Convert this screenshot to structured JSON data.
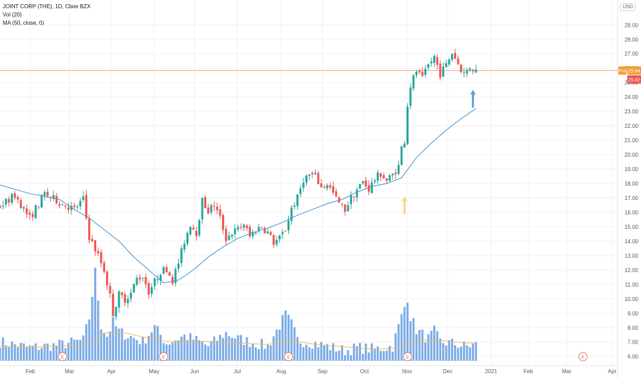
{
  "header": {
    "symbol_line": "JOINT CORP (THE), 1D, Cboe BZX",
    "vol_line": "Vol (20)",
    "ma_line": "MA (50, close, 0)",
    "currency": "USD"
  },
  "chart_data": {
    "type": "candlestick",
    "y_range": [
      5.7,
      29.3
    ],
    "y_ticks": [
      "6.00",
      "7.00",
      "8.00",
      "9.00",
      "10.00",
      "11.00",
      "12.00",
      "13.00",
      "14.00",
      "15.00",
      "16.00",
      "17.00",
      "18.00",
      "19.00",
      "20.00",
      "21.00",
      "22.00",
      "23.00",
      "24.00",
      "25.00",
      "26.00",
      "27.00",
      "28.00",
      "29.00"
    ],
    "x_labels": [
      "Feb",
      "Mar",
      "Apr",
      "May",
      "Jun",
      "Jul",
      "Aug",
      "Sep",
      "Oct",
      "Nov",
      "Dec",
      "2021",
      "Feb",
      "Mar",
      "Apr"
    ],
    "close_path": [
      [
        0,
        16.4
      ],
      [
        5,
        17.2
      ],
      [
        10,
        15.6
      ],
      [
        15,
        17.3
      ],
      [
        20,
        16.7
      ],
      [
        25,
        16.2
      ],
      [
        28,
        16.9
      ],
      [
        30,
        14.3
      ],
      [
        33,
        13.0
      ],
      [
        35,
        12.0
      ],
      [
        37,
        10.2
      ],
      [
        38,
        9.0
      ],
      [
        40,
        10.3
      ],
      [
        42,
        10.0
      ],
      [
        44,
        10.4
      ],
      [
        46,
        11.4
      ],
      [
        48,
        11.6
      ],
      [
        50,
        10.5
      ],
      [
        52,
        11.2
      ],
      [
        54,
        11.9
      ],
      [
        56,
        12.1
      ],
      [
        58,
        11.3
      ],
      [
        60,
        12.5
      ],
      [
        62,
        14.0
      ],
      [
        64,
        15.2
      ],
      [
        66,
        14.6
      ],
      [
        68,
        16.8
      ],
      [
        70,
        16.1
      ],
      [
        72,
        16.5
      ],
      [
        74,
        15.6
      ],
      [
        76,
        14.2
      ],
      [
        78,
        14.6
      ],
      [
        80,
        14.8
      ],
      [
        82,
        15.2
      ],
      [
        84,
        14.3
      ],
      [
        86,
        14.8
      ],
      [
        88,
        15.0
      ],
      [
        90,
        14.6
      ],
      [
        92,
        13.9
      ],
      [
        94,
        14.2
      ],
      [
        96,
        14.8
      ],
      [
        98,
        16.3
      ],
      [
        100,
        17.0
      ],
      [
        102,
        18.3
      ],
      [
        104,
        18.6
      ],
      [
        106,
        18.5
      ],
      [
        108,
        17.7
      ],
      [
        110,
        18.0
      ],
      [
        112,
        17.3
      ],
      [
        114,
        16.6
      ],
      [
        116,
        16.2
      ],
      [
        118,
        17.0
      ],
      [
        120,
        17.6
      ],
      [
        122,
        18.1
      ],
      [
        124,
        17.6
      ],
      [
        126,
        18.3
      ],
      [
        128,
        18.7
      ],
      [
        130,
        18.2
      ],
      [
        132,
        18.6
      ],
      [
        134,
        19.2
      ],
      [
        135,
        20.5
      ],
      [
        136,
        21.0
      ],
      [
        137,
        23.5
      ],
      [
        138,
        24.8
      ],
      [
        140,
        25.8
      ],
      [
        142,
        25.2
      ],
      [
        144,
        26.2
      ],
      [
        146,
        26.8
      ],
      [
        148,
        25.6
      ],
      [
        150,
        26.2
      ],
      [
        152,
        27.1
      ],
      [
        154,
        26.3
      ],
      [
        156,
        25.6
      ],
      [
        158,
        26.1
      ],
      [
        160,
        25.82
      ]
    ],
    "volume_path": [
      [
        0,
        7.2
      ],
      [
        10,
        6.8
      ],
      [
        20,
        7.0
      ],
      [
        28,
        7.3
      ],
      [
        30,
        8.8
      ],
      [
        32,
        11.9
      ],
      [
        34,
        8.3
      ],
      [
        36,
        7.6
      ],
      [
        38,
        8.5
      ],
      [
        40,
        7.9
      ],
      [
        42,
        7.7
      ],
      [
        48,
        7.2
      ],
      [
        52,
        8.2
      ],
      [
        56,
        7.1
      ],
      [
        62,
        7.6
      ],
      [
        66,
        7.3
      ],
      [
        70,
        6.9
      ],
      [
        76,
        7.8
      ],
      [
        80,
        7.4
      ],
      [
        86,
        7.1
      ],
      [
        90,
        6.9
      ],
      [
        96,
        9.0
      ],
      [
        98,
        8.4
      ],
      [
        100,
        7.3
      ],
      [
        106,
        7.1
      ],
      [
        110,
        6.9
      ],
      [
        116,
        6.6
      ],
      [
        120,
        6.8
      ],
      [
        126,
        6.7
      ],
      [
        132,
        6.9
      ],
      [
        137,
        10.2
      ],
      [
        138,
        8.9
      ],
      [
        140,
        8.0
      ],
      [
        144,
        7.4
      ],
      [
        146,
        7.9
      ],
      [
        148,
        7.2
      ],
      [
        152,
        7.1
      ],
      [
        156,
        6.9
      ],
      [
        160,
        7.0
      ]
    ],
    "volume_max_value": 12.0,
    "ma_points": [
      [
        0,
        17.9
      ],
      [
        10,
        17.3
      ],
      [
        20,
        16.9
      ],
      [
        25,
        16.2
      ],
      [
        30,
        15.6
      ],
      [
        35,
        14.8
      ],
      [
        40,
        14.0
      ],
      [
        45,
        12.9
      ],
      [
        50,
        12.0
      ],
      [
        55,
        11.1
      ],
      [
        60,
        11.3
      ],
      [
        65,
        12.0
      ],
      [
        70,
        12.9
      ],
      [
        75,
        13.6
      ],
      [
        80,
        14.2
      ],
      [
        85,
        14.6
      ],
      [
        90,
        14.9
      ],
      [
        95,
        15.3
      ],
      [
        100,
        15.8
      ],
      [
        105,
        16.2
      ],
      [
        110,
        16.6
      ],
      [
        115,
        16.9
      ],
      [
        120,
        17.4
      ],
      [
        125,
        17.8
      ],
      [
        130,
        18.0
      ],
      [
        135,
        18.4
      ],
      [
        140,
        19.8
      ],
      [
        145,
        20.8
      ],
      [
        150,
        21.7
      ],
      [
        155,
        22.5
      ],
      [
        160,
        23.2
      ]
    ],
    "volume_ma_points": [
      [
        0,
        7.0
      ],
      [
        10,
        6.9
      ],
      [
        20,
        7.0
      ],
      [
        28,
        7.0
      ],
      [
        32,
        7.5
      ],
      [
        36,
        7.9
      ],
      [
        40,
        7.9
      ],
      [
        44,
        7.8
      ],
      [
        48,
        7.6
      ],
      [
        52,
        7.5
      ],
      [
        56,
        7.3
      ],
      [
        60,
        7.3
      ],
      [
        66,
        7.3
      ],
      [
        72,
        7.3
      ],
      [
        80,
        7.2
      ],
      [
        90,
        7.1
      ],
      [
        96,
        7.3
      ],
      [
        100,
        7.3
      ],
      [
        106,
        7.1
      ],
      [
        112,
        7.0
      ],
      [
        118,
        6.9
      ],
      [
        124,
        6.8
      ],
      [
        130,
        6.8
      ],
      [
        134,
        6.9
      ],
      [
        138,
        7.2
      ],
      [
        142,
        7.4
      ],
      [
        146,
        7.4
      ],
      [
        152,
        7.3
      ],
      [
        156,
        7.2
      ],
      [
        160,
        7.2
      ]
    ],
    "last_price": 25.82,
    "pre_price": 25.84,
    "pre_label": "Pre",
    "pre_value_label": "25.84",
    "last_value_label": "25.82",
    "earnings_marker": "E",
    "earnings_markers_at": [
      21,
      55,
      97,
      137,
      196
    ],
    "arrow_up_orange_at": [
      136,
      17.1
    ],
    "arrow_up_blue_at": [
      159,
      24.5
    ],
    "colors": {
      "up": "#26a69a",
      "down": "#ef5350",
      "volume": "#7aaae6",
      "ma": "#3d8fd0",
      "volume_ma": "#f3b85b",
      "price_line": "#f5a07a",
      "orange_arrow": "#ffd28a",
      "blue_arrow": "#5aa0d5",
      "earnings": "#e07a70"
    }
  }
}
